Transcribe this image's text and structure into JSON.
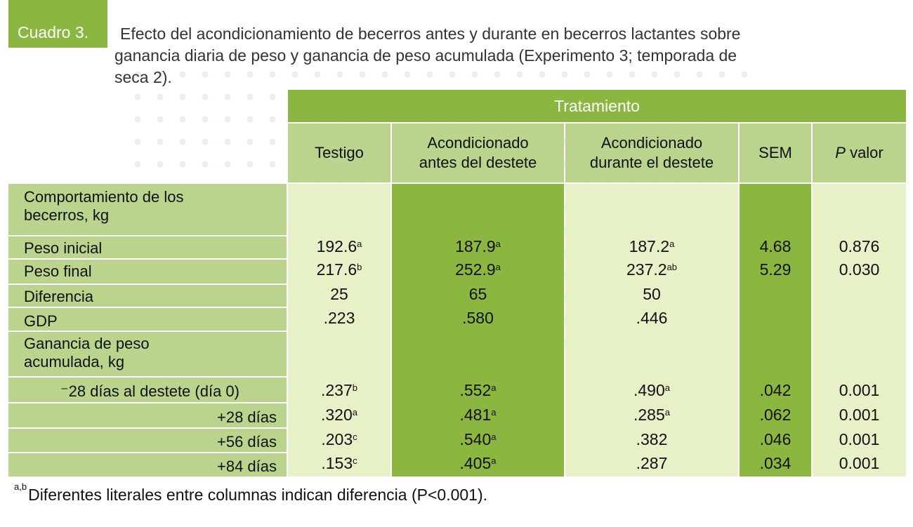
{
  "caption": {
    "tag": "Cuadro 3.",
    "line1": "Efecto del acondicionamiento de becerros antes y durante en becerros lactantes sobre",
    "line2": "ganancia diaria de peso y ganancia de peso acumulada (Experimento 3; temporada de",
    "line3": "seca 2)."
  },
  "table": {
    "group_header": "Tratamiento",
    "columns": {
      "c1": "Testigo",
      "c2a": "Acondicionado",
      "c2b": "antes del destete",
      "c3a": "Acondicionado",
      "c3b": "durante el destete",
      "c4": "SEM",
      "c5_italic": "P",
      "c5_rest": " valor"
    },
    "rows": {
      "section1": {
        "l1": "Comportamiento de los",
        "l2": "becerros, kg"
      },
      "peso_inicial": {
        "label": "Peso inicial",
        "c1": "192.6",
        "c1s": "a",
        "c2": "187.9",
        "c2s": "a",
        "c3": "187.2",
        "c3s": "a",
        "c4": "4.68",
        "c5": "0.876"
      },
      "peso_final": {
        "label": "Peso final",
        "c1": "217.6",
        "c1s": "b",
        "c2": "252.9",
        "c2s": "a",
        "c3": "237.2",
        "c3s": "ab",
        "c4": "5.29",
        "c5": "0.030"
      },
      "diferencia": {
        "label": "Diferencia",
        "c1": "25",
        "c2": "65",
        "c3": "50"
      },
      "gdp": {
        "label": "GDP",
        "c1": ".223",
        "c2": ".580",
        "c3": ".446"
      },
      "section2": {
        "l1": "Ganancia de peso",
        "l2": "acumulada, kg"
      },
      "d0": {
        "label": "⁻28 días al destete (día 0)",
        "c1": ".237",
        "c1s": "b",
        "c2": ".552",
        "c2s": "a",
        "c3": ".490",
        "c3s": "a",
        "c4": ".042",
        "c5": "0.001"
      },
      "d28": {
        "label": "+28 días",
        "c1": ".320",
        "c1s": "a",
        "c2": ".481",
        "c2s": "a",
        "c3": ".285",
        "c3s": "a",
        "c4": ".062",
        "c5": "0.001"
      },
      "d56": {
        "label": "+56 días",
        "c1": ".203",
        "c1s": "c",
        "c2": ".540",
        "c2s": "a",
        "c3": ".382",
        "c4": ".046",
        "c5": "0.001"
      },
      "d84": {
        "label": "+84  días",
        "c1": ".153",
        "c1s": "c",
        "c2": ".405",
        "c2s": "a",
        "c3": ".287",
        "c4": ".034",
        "c5": "0.001"
      }
    }
  },
  "footnote": {
    "sup": "a,b",
    "text": "Diferentes literales entre columnas indican diferencia (P<0.001)."
  },
  "colors": {
    "accent": "#8bb63f",
    "mid": "#bad48d",
    "light": "#e6f1c8"
  }
}
